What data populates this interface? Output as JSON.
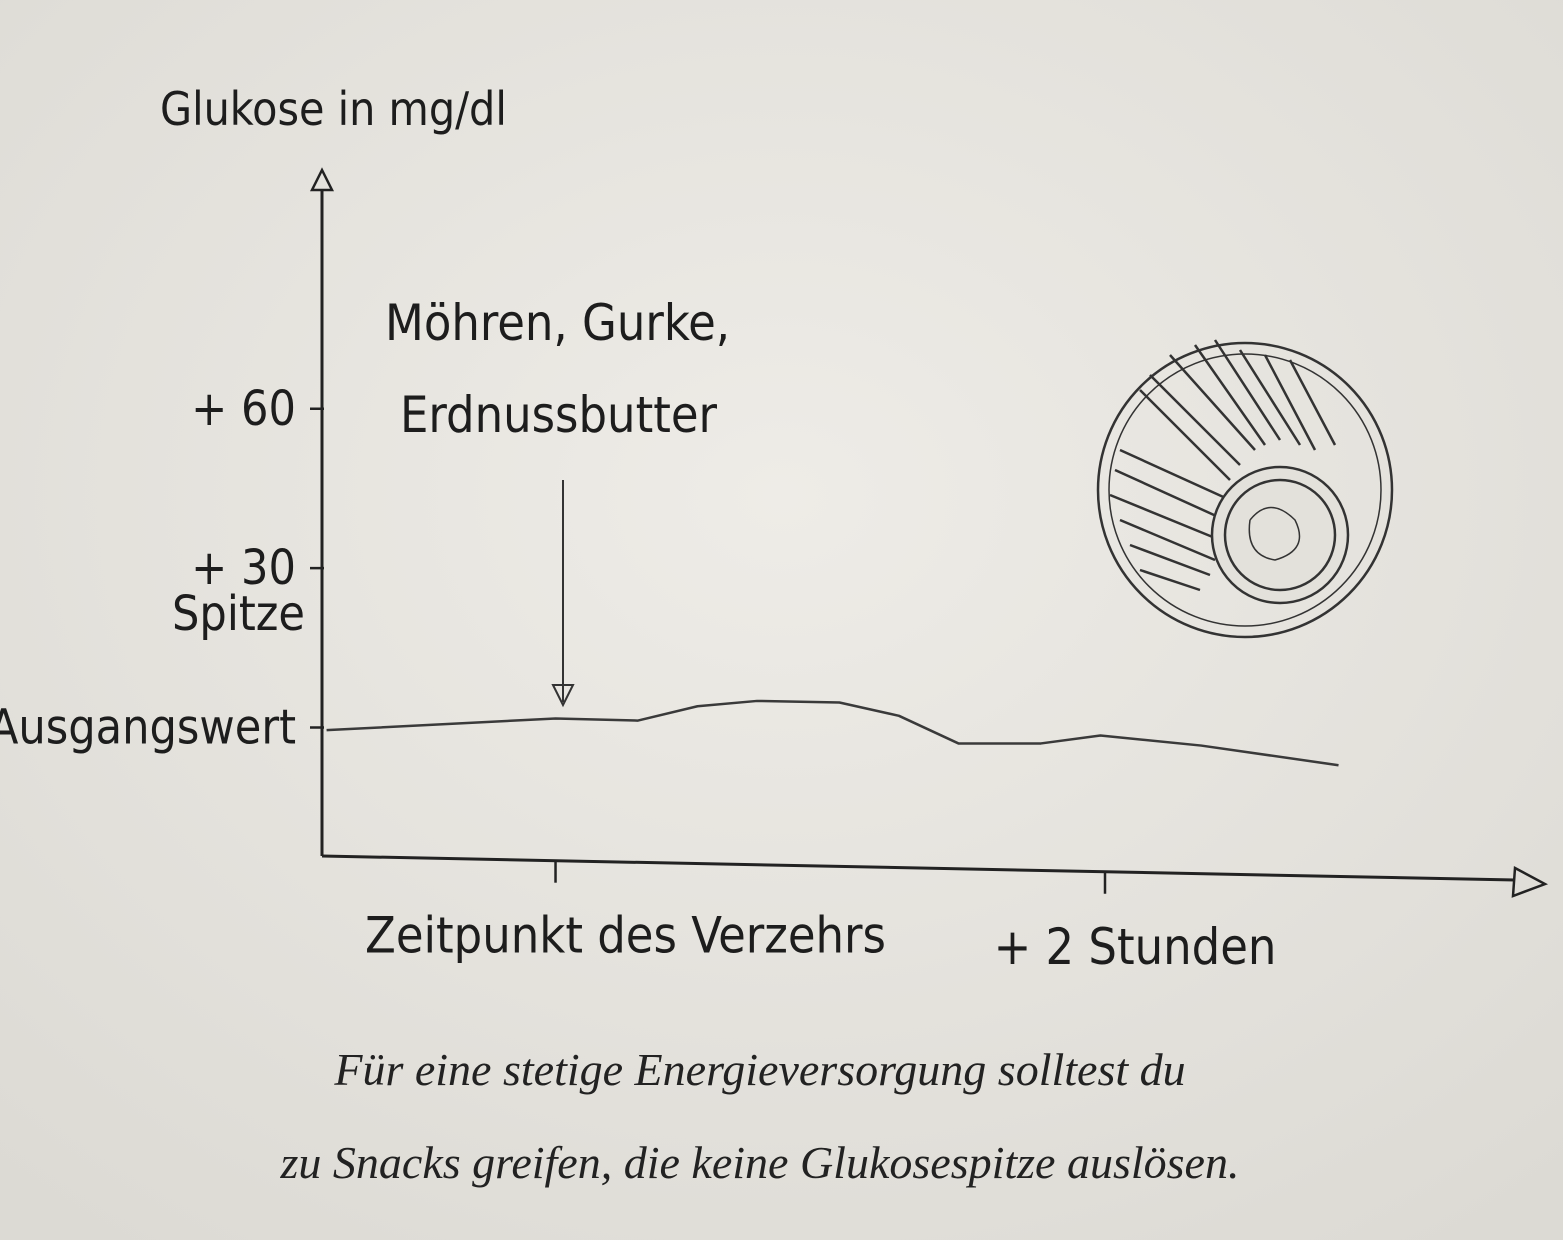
{
  "chart_data": {
    "type": "line",
    "y_label": "Glukose in mg/dl",
    "annotation": [
      "Möhren, Gurke,",
      "Erdnussbutter"
    ],
    "y_annotation": "Spitze",
    "caption": [
      "Für eine stetige Energieversorgung solltest du",
      "zu Snacks greifen, die keine Glukosespitze auslösen."
    ],
    "color": "#3a3a3a",
    "x": [
      -50,
      0,
      18,
      31,
      44,
      62,
      75,
      88,
      106,
      119,
      141,
      171
    ],
    "values": [
      -0.5,
      1.7,
      1.3,
      4,
      5,
      4.7,
      2.2,
      -3,
      -3,
      -1.5,
      -3.4,
      -7.1
    ],
    "xlim": [
      -51,
      215
    ],
    "xticks": [
      {
        "value": 0,
        "label": "Zeitpunkt des Verzehrs"
      },
      {
        "value": 120,
        "label": "+ 2 Stunden"
      }
    ],
    "ylim": [
      -24,
      104
    ],
    "yticks": [
      {
        "value": 0,
        "label": "Ausgangswert"
      },
      {
        "value": 30,
        "label": "+ 30"
      },
      {
        "value": 60,
        "label": "+ 60"
      }
    ]
  }
}
